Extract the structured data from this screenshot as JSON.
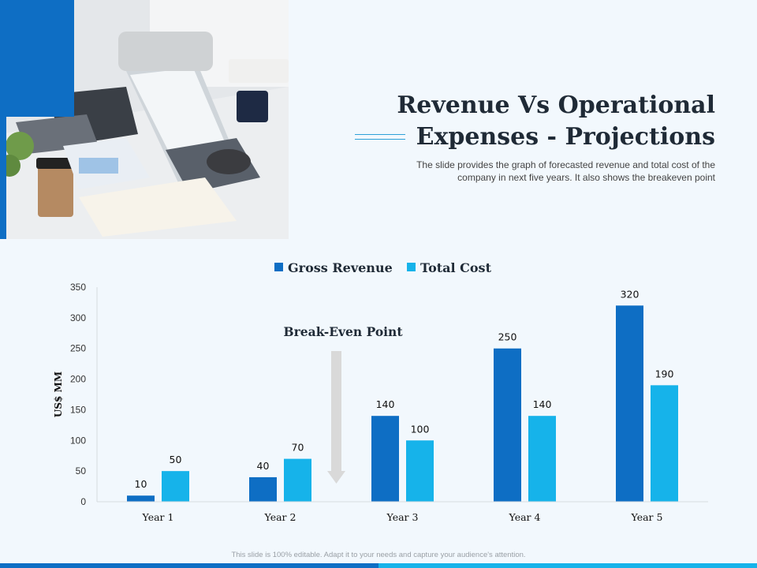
{
  "slide": {
    "title_line1": "Revenue Vs Operational",
    "title_line2": "Expenses - Projections",
    "subtitle_line1": "The slide provides the graph of forecasted revenue and total cost of the",
    "subtitle_line2": "company in next five years. It also shows the breakeven point",
    "footer_note": "This slide is 100% editable. Adapt it to your needs and capture your audience's attention."
  },
  "colors": {
    "accent": "#0e6ec4",
    "accent_light": "#16b3ea",
    "background": "#f2f8fd"
  },
  "chart_data": {
    "type": "bar",
    "categories": [
      "Year 1",
      "Year 2",
      "Year 3",
      "Year 4",
      "Year 5"
    ],
    "series": [
      {
        "name": "Gross Revenue",
        "values": [
          10,
          40,
          140,
          250,
          320
        ],
        "color": "#0e6ec4"
      },
      {
        "name": "Total Cost",
        "values": [
          50,
          70,
          100,
          140,
          190
        ],
        "color": "#16b3ea"
      }
    ],
    "ylabel": "US$ MM",
    "ylim": [
      0,
      350
    ],
    "yticks": [
      0,
      50,
      100,
      150,
      200,
      250,
      300,
      350
    ],
    "legend": "top",
    "grid": false,
    "annotation": {
      "text": "Break-Even Point",
      "position": "above gap between Year 2 and Year 3"
    }
  }
}
